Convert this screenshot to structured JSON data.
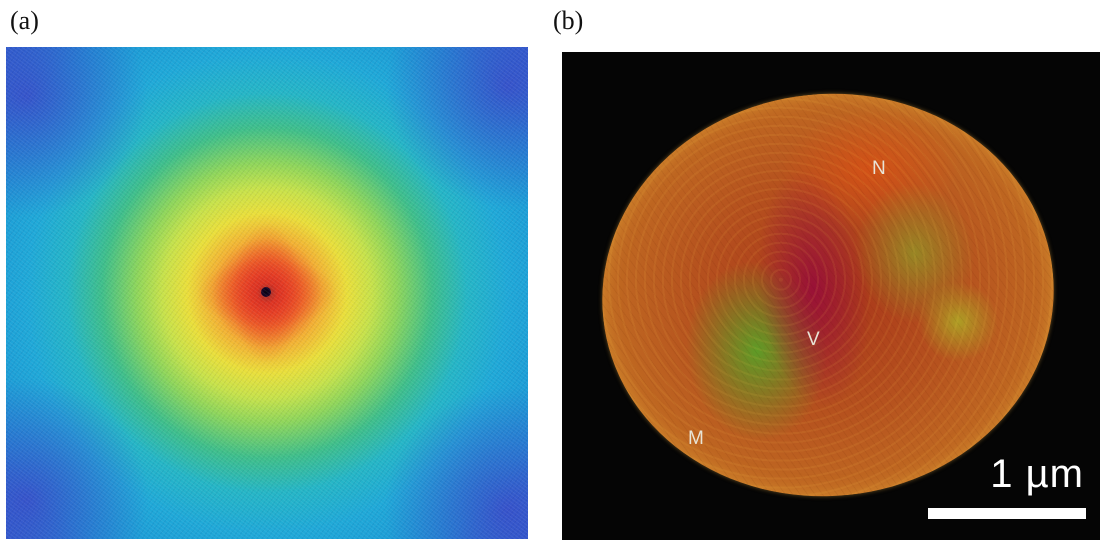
{
  "panels": {
    "a": {
      "label": "(a)"
    },
    "b": {
      "label": "(b)",
      "annotations": {
        "n": "N",
        "v": "V",
        "m": "M"
      },
      "scale_bar": {
        "text": "1 µm"
      }
    }
  },
  "colors": {
    "background": "#ffffff",
    "panel_b_background": "#050505",
    "diffraction_center": "#c8202a",
    "diffraction_outer": "#1fa9d8",
    "cell_body": "#b5501e"
  }
}
